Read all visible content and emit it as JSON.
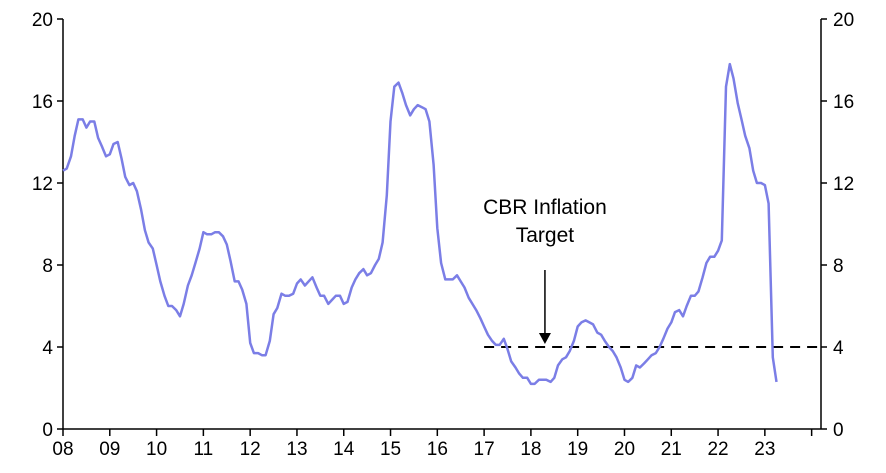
{
  "chart_data": {
    "type": "line",
    "title": "",
    "xlabel": "",
    "ylabel": "",
    "ylim": [
      0,
      20
    ],
    "xlim": [
      2008,
      2024.2
    ],
    "y_ticks": [
      "0",
      "4",
      "8",
      "12",
      "16",
      "20"
    ],
    "x_ticks": [
      {
        "value": 2008,
        "label": "08"
      },
      {
        "value": 2009,
        "label": "09"
      },
      {
        "value": 2010,
        "label": "10"
      },
      {
        "value": 2011,
        "label": "11"
      },
      {
        "value": 2012,
        "label": "12"
      },
      {
        "value": 2013,
        "label": "13"
      },
      {
        "value": 2014,
        "label": "14"
      },
      {
        "value": 2015,
        "label": "15"
      },
      {
        "value": 2016,
        "label": "16"
      },
      {
        "value": 2017,
        "label": "17"
      },
      {
        "value": 2018,
        "label": "18"
      },
      {
        "value": 2019,
        "label": "19"
      },
      {
        "value": 2020,
        "label": "20"
      },
      {
        "value": 2021,
        "label": "21"
      },
      {
        "value": 2022,
        "label": "22"
      },
      {
        "value": 2023,
        "label": "23"
      }
    ],
    "grid": false,
    "legend": "none",
    "series": [
      {
        "color": "#7b7ee6",
        "points": [
          [
            2008.0,
            12.6
          ],
          [
            2008.08,
            12.7
          ],
          [
            2008.17,
            13.3
          ],
          [
            2008.25,
            14.3
          ],
          [
            2008.33,
            15.1
          ],
          [
            2008.42,
            15.1
          ],
          [
            2008.5,
            14.7
          ],
          [
            2008.58,
            15.0
          ],
          [
            2008.67,
            15.0
          ],
          [
            2008.75,
            14.2
          ],
          [
            2008.83,
            13.8
          ],
          [
            2008.92,
            13.3
          ],
          [
            2009.0,
            13.4
          ],
          [
            2009.08,
            13.9
          ],
          [
            2009.17,
            14.0
          ],
          [
            2009.25,
            13.2
          ],
          [
            2009.33,
            12.3
          ],
          [
            2009.42,
            11.9
          ],
          [
            2009.5,
            12.0
          ],
          [
            2009.58,
            11.6
          ],
          [
            2009.67,
            10.7
          ],
          [
            2009.75,
            9.7
          ],
          [
            2009.83,
            9.1
          ],
          [
            2009.92,
            8.8
          ],
          [
            2010.0,
            8.0
          ],
          [
            2010.08,
            7.2
          ],
          [
            2010.17,
            6.5
          ],
          [
            2010.25,
            6.0
          ],
          [
            2010.33,
            6.0
          ],
          [
            2010.42,
            5.8
          ],
          [
            2010.5,
            5.5
          ],
          [
            2010.58,
            6.1
          ],
          [
            2010.67,
            7.0
          ],
          [
            2010.75,
            7.5
          ],
          [
            2010.83,
            8.1
          ],
          [
            2010.92,
            8.8
          ],
          [
            2011.0,
            9.6
          ],
          [
            2011.08,
            9.5
          ],
          [
            2011.17,
            9.5
          ],
          [
            2011.25,
            9.6
          ],
          [
            2011.33,
            9.6
          ],
          [
            2011.42,
            9.4
          ],
          [
            2011.5,
            9.0
          ],
          [
            2011.58,
            8.2
          ],
          [
            2011.67,
            7.2
          ],
          [
            2011.75,
            7.2
          ],
          [
            2011.83,
            6.8
          ],
          [
            2011.92,
            6.1
          ],
          [
            2012.0,
            4.2
          ],
          [
            2012.08,
            3.7
          ],
          [
            2012.17,
            3.7
          ],
          [
            2012.25,
            3.6
          ],
          [
            2012.33,
            3.6
          ],
          [
            2012.42,
            4.3
          ],
          [
            2012.5,
            5.6
          ],
          [
            2012.58,
            5.9
          ],
          [
            2012.67,
            6.6
          ],
          [
            2012.75,
            6.5
          ],
          [
            2012.83,
            6.5
          ],
          [
            2012.92,
            6.6
          ],
          [
            2013.0,
            7.1
          ],
          [
            2013.08,
            7.3
          ],
          [
            2013.17,
            7.0
          ],
          [
            2013.25,
            7.2
          ],
          [
            2013.33,
            7.4
          ],
          [
            2013.42,
            6.9
          ],
          [
            2013.5,
            6.5
          ],
          [
            2013.58,
            6.5
          ],
          [
            2013.67,
            6.1
          ],
          [
            2013.75,
            6.3
          ],
          [
            2013.83,
            6.5
          ],
          [
            2013.92,
            6.5
          ],
          [
            2014.0,
            6.1
          ],
          [
            2014.08,
            6.2
          ],
          [
            2014.17,
            6.9
          ],
          [
            2014.25,
            7.3
          ],
          [
            2014.33,
            7.6
          ],
          [
            2014.42,
            7.8
          ],
          [
            2014.5,
            7.5
          ],
          [
            2014.58,
            7.6
          ],
          [
            2014.67,
            8.0
          ],
          [
            2014.75,
            8.3
          ],
          [
            2014.83,
            9.1
          ],
          [
            2014.92,
            11.4
          ],
          [
            2015.0,
            15.0
          ],
          [
            2015.08,
            16.7
          ],
          [
            2015.17,
            16.9
          ],
          [
            2015.25,
            16.4
          ],
          [
            2015.33,
            15.8
          ],
          [
            2015.42,
            15.3
          ],
          [
            2015.5,
            15.6
          ],
          [
            2015.58,
            15.8
          ],
          [
            2015.67,
            15.7
          ],
          [
            2015.75,
            15.6
          ],
          [
            2015.83,
            15.0
          ],
          [
            2015.92,
            12.9
          ],
          [
            2016.0,
            9.8
          ],
          [
            2016.08,
            8.1
          ],
          [
            2016.17,
            7.3
          ],
          [
            2016.25,
            7.3
          ],
          [
            2016.33,
            7.3
          ],
          [
            2016.42,
            7.5
          ],
          [
            2016.5,
            7.2
          ],
          [
            2016.58,
            6.9
          ],
          [
            2016.67,
            6.4
          ],
          [
            2016.75,
            6.1
          ],
          [
            2016.83,
            5.8
          ],
          [
            2016.92,
            5.4
          ],
          [
            2017.0,
            5.0
          ],
          [
            2017.08,
            4.6
          ],
          [
            2017.17,
            4.3
          ],
          [
            2017.25,
            4.1
          ],
          [
            2017.33,
            4.1
          ],
          [
            2017.42,
            4.4
          ],
          [
            2017.5,
            3.9
          ],
          [
            2017.58,
            3.3
          ],
          [
            2017.67,
            3.0
          ],
          [
            2017.75,
            2.7
          ],
          [
            2017.83,
            2.5
          ],
          [
            2017.92,
            2.5
          ],
          [
            2018.0,
            2.2
          ],
          [
            2018.08,
            2.2
          ],
          [
            2018.17,
            2.4
          ],
          [
            2018.25,
            2.4
          ],
          [
            2018.33,
            2.4
          ],
          [
            2018.42,
            2.3
          ],
          [
            2018.5,
            2.5
          ],
          [
            2018.58,
            3.1
          ],
          [
            2018.67,
            3.4
          ],
          [
            2018.75,
            3.5
          ],
          [
            2018.83,
            3.8
          ],
          [
            2018.92,
            4.3
          ],
          [
            2019.0,
            5.0
          ],
          [
            2019.08,
            5.2
          ],
          [
            2019.17,
            5.3
          ],
          [
            2019.25,
            5.2
          ],
          [
            2019.33,
            5.1
          ],
          [
            2019.42,
            4.7
          ],
          [
            2019.5,
            4.6
          ],
          [
            2019.58,
            4.3
          ],
          [
            2019.67,
            4.0
          ],
          [
            2019.75,
            3.8
          ],
          [
            2019.83,
            3.5
          ],
          [
            2019.92,
            3.0
          ],
          [
            2020.0,
            2.4
          ],
          [
            2020.08,
            2.3
          ],
          [
            2020.17,
            2.5
          ],
          [
            2020.25,
            3.1
          ],
          [
            2020.33,
            3.0
          ],
          [
            2020.42,
            3.2
          ],
          [
            2020.5,
            3.4
          ],
          [
            2020.58,
            3.6
          ],
          [
            2020.67,
            3.7
          ],
          [
            2020.75,
            4.0
          ],
          [
            2020.83,
            4.4
          ],
          [
            2020.92,
            4.9
          ],
          [
            2021.0,
            5.2
          ],
          [
            2021.08,
            5.7
          ],
          [
            2021.17,
            5.8
          ],
          [
            2021.25,
            5.5
          ],
          [
            2021.33,
            6.0
          ],
          [
            2021.42,
            6.5
          ],
          [
            2021.5,
            6.5
          ],
          [
            2021.58,
            6.7
          ],
          [
            2021.67,
            7.4
          ],
          [
            2021.75,
            8.1
          ],
          [
            2021.83,
            8.4
          ],
          [
            2021.92,
            8.4
          ],
          [
            2022.0,
            8.7
          ],
          [
            2022.08,
            9.2
          ],
          [
            2022.17,
            16.7
          ],
          [
            2022.25,
            17.8
          ],
          [
            2022.33,
            17.1
          ],
          [
            2022.42,
            15.9
          ],
          [
            2022.5,
            15.1
          ],
          [
            2022.58,
            14.3
          ],
          [
            2022.67,
            13.7
          ],
          [
            2022.75,
            12.6
          ],
          [
            2022.83,
            12.0
          ],
          [
            2022.92,
            12.0
          ],
          [
            2023.0,
            11.9
          ],
          [
            2023.08,
            11.0
          ],
          [
            2023.17,
            3.5
          ],
          [
            2023.25,
            2.3
          ]
        ]
      }
    ],
    "reference_line": {
      "label_lines": [
        "CBR Inflation",
        "Target"
      ],
      "y": 4,
      "x_start": 2017.0,
      "x_end": 2024.2,
      "style": "dashed",
      "arrow_x": 2018.3
    }
  }
}
